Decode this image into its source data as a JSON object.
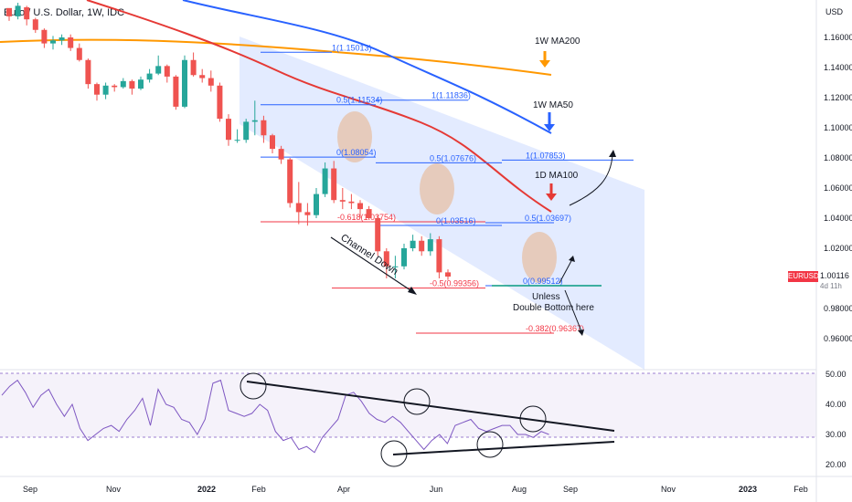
{
  "header": {
    "title": "Euro / U.S. Dollar, 1W, IDC",
    "currency": "USD",
    "symbol_tag": "EURUSD",
    "last_price": "1.00116",
    "time_left": "4d 11h"
  },
  "chart_data": {
    "type": "candlestick",
    "price_ticks": [
      "1.16000",
      "1.14000",
      "1.12000",
      "1.10000",
      "1.08000",
      "1.06000",
      "1.04000",
      "1.02000",
      "0.98000",
      "0.96000"
    ],
    "rsi_ticks": [
      "50.00",
      "40.00",
      "30.00",
      "20.00"
    ],
    "x_ticks": [
      "Sep",
      "Nov",
      "2022",
      "Feb",
      "Apr",
      "Jun",
      "Aug",
      "Sep",
      "Nov",
      "2023",
      "Feb"
    ],
    "candles": [
      [
        1.1795,
        1.174,
        1.176,
        1.171
      ],
      [
        1.174,
        1.181,
        1.183,
        1.172
      ],
      [
        1.18,
        1.172,
        1.181,
        1.168
      ],
      [
        1.172,
        1.165,
        1.173,
        1.163
      ],
      [
        1.165,
        1.156,
        1.166,
        1.153
      ],
      [
        1.156,
        1.158,
        1.161,
        1.152
      ],
      [
        1.158,
        1.16,
        1.162,
        1.155
      ],
      [
        1.16,
        1.153,
        1.162,
        1.151
      ],
      [
        1.153,
        1.145,
        1.156,
        1.144
      ],
      [
        1.145,
        1.129,
        1.146,
        1.126
      ],
      [
        1.129,
        1.122,
        1.13,
        1.118
      ],
      [
        1.122,
        1.128,
        1.13,
        1.119
      ],
      [
        1.128,
        1.127,
        1.129,
        1.124
      ],
      [
        1.127,
        1.131,
        1.133,
        1.126
      ],
      [
        1.131,
        1.126,
        1.132,
        1.122
      ],
      [
        1.126,
        1.132,
        1.134,
        1.125
      ],
      [
        1.132,
        1.136,
        1.139,
        1.13
      ],
      [
        1.136,
        1.141,
        1.148,
        1.135
      ],
      [
        1.141,
        1.134,
        1.142,
        1.13
      ],
      [
        1.134,
        1.114,
        1.135,
        1.112
      ],
      [
        1.114,
        1.145,
        1.148,
        1.113
      ],
      [
        1.145,
        1.135,
        1.15,
        1.134
      ],
      [
        1.135,
        1.133,
        1.139,
        1.13
      ],
      [
        1.133,
        1.128,
        1.138,
        1.124
      ],
      [
        1.128,
        1.106,
        1.13,
        1.104
      ],
      [
        1.106,
        1.092,
        1.109,
        1.088
      ],
      [
        1.092,
        1.092,
        1.099,
        1.09
      ],
      [
        1.092,
        1.104,
        1.106,
        1.09
      ],
      [
        1.104,
        1.105,
        1.118,
        1.095
      ],
      [
        1.105,
        1.095,
        1.108,
        1.09
      ],
      [
        1.095,
        1.086,
        1.096,
        1.083
      ],
      [
        1.086,
        1.079,
        1.088,
        1.076
      ],
      [
        1.079,
        1.05,
        1.08,
        1.047
      ],
      [
        1.05,
        1.044,
        1.064,
        1.036
      ],
      [
        1.044,
        1.042,
        1.05,
        1.035
      ],
      [
        1.042,
        1.056,
        1.06,
        1.04
      ],
      [
        1.056,
        1.073,
        1.077,
        1.054
      ],
      [
        1.073,
        1.052,
        1.078,
        1.05
      ],
      [
        1.052,
        1.051,
        1.06,
        1.046
      ],
      [
        1.051,
        1.05,
        1.056,
        1.046
      ],
      [
        1.05,
        1.046,
        1.052,
        1.04
      ],
      [
        1.046,
        1.04,
        1.048,
        1.039
      ],
      [
        1.04,
        1.018,
        1.042,
        1.015
      ],
      [
        1.018,
        1.008,
        1.02,
        1.0
      ],
      [
        1.008,
        1.008,
        1.015,
        1.0
      ],
      [
        1.008,
        1.02,
        1.023,
        1.006
      ],
      [
        1.02,
        1.025,
        1.029,
        1.018
      ],
      [
        1.025,
        1.018,
        1.028,
        1.015
      ],
      [
        1.018,
        1.026,
        1.03,
        1.015
      ],
      [
        1.026,
        1.004,
        1.028,
        1.0
      ],
      [
        1.004,
        1.0012,
        1.006,
        0.999
      ]
    ],
    "fib_levels": [
      {
        "label": "1(1.15013)",
        "value": 1.15013
      },
      {
        "label": "0.5(1.11534)",
        "value": 1.11534
      },
      {
        "label": "1(1.11836)",
        "value": 1.11836
      },
      {
        "label": "0(1.08054)",
        "value": 1.08054
      },
      {
        "label": "0.5(1.07676)",
        "value": 1.07676
      },
      {
        "label": "1(1.07853)",
        "value": 1.07853
      },
      {
        "label": "-0.618(1.03754)",
        "value": 1.03754
      },
      {
        "label": "0(1.03516)",
        "value": 1.03516
      },
      {
        "label": "0.5(1.03697)",
        "value": 1.03697
      },
      {
        "label": "0(0.99512)",
        "value": 0.99512
      },
      {
        "label": "-0.5(0.99356)",
        "value": 0.99356
      },
      {
        "label": "-0.382(0.96367)",
        "value": 0.96367
      }
    ],
    "annotations": {
      "ma200": "1W MA200",
      "ma50": "1W MA50",
      "ma100": "1D MA100",
      "channel": "Channel Down",
      "unless_line1": "Unless",
      "unless_line2": "Double Bottom here"
    },
    "series_colors": {
      "up": "#26a69a",
      "down": "#ef5350",
      "ma200": "#ff9800",
      "ma50": "#2962ff",
      "ma100": "#e53935",
      "rsi": "#7e57c2"
    }
  }
}
